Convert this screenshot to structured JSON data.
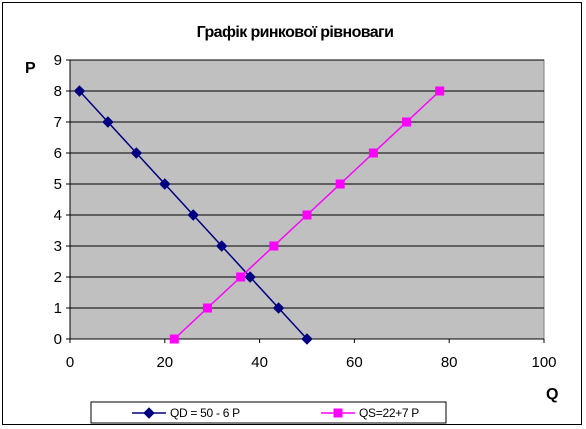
{
  "chart_data": {
    "type": "line",
    "title": "Графік ринкової рівноваги",
    "xlabel": "Q",
    "ylabel": "P",
    "xlim": [
      0,
      100
    ],
    "ylim": [
      0,
      9
    ],
    "x_ticks": [
      0,
      20,
      40,
      60,
      80,
      100
    ],
    "y_ticks": [
      0,
      1,
      2,
      3,
      4,
      5,
      6,
      7,
      8,
      9
    ],
    "grid": true,
    "grid_axis": "y",
    "plot_background": "#c0c0c0",
    "legend_position": "bottom",
    "series": [
      {
        "name": "QD = 50 - 6 P",
        "color": "#000080",
        "marker": "diamond",
        "points": [
          {
            "x": 2,
            "y": 8
          },
          {
            "x": 8,
            "y": 7
          },
          {
            "x": 14,
            "y": 6
          },
          {
            "x": 20,
            "y": 5
          },
          {
            "x": 26,
            "y": 4
          },
          {
            "x": 32,
            "y": 3
          },
          {
            "x": 38,
            "y": 2
          },
          {
            "x": 44,
            "y": 1
          },
          {
            "x": 50,
            "y": 0
          }
        ]
      },
      {
        "name": "QS=22+7 P",
        "color": "#ff00ff",
        "marker": "square",
        "points": [
          {
            "x": 22,
            "y": 0
          },
          {
            "x": 29,
            "y": 1
          },
          {
            "x": 36,
            "y": 2
          },
          {
            "x": 43,
            "y": 3
          },
          {
            "x": 50,
            "y": 4
          },
          {
            "x": 57,
            "y": 5
          },
          {
            "x": 64,
            "y": 6
          },
          {
            "x": 71,
            "y": 7
          },
          {
            "x": 78,
            "y": 8
          }
        ]
      }
    ]
  }
}
